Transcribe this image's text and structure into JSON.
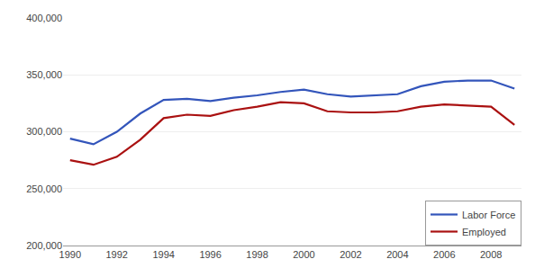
{
  "chart_data": {
    "type": "line",
    "x": [
      1990,
      1991,
      1992,
      1993,
      1994,
      1995,
      1996,
      1997,
      1998,
      1999,
      2000,
      2001,
      2002,
      2003,
      2004,
      2005,
      2006,
      2007,
      2008,
      2009
    ],
    "series": [
      {
        "name": "Labor Force",
        "color": "#3355bb",
        "values": [
          294000,
          289000,
          300000,
          316000,
          328000,
          329000,
          327000,
          330000,
          332000,
          335000,
          337000,
          333000,
          331000,
          332000,
          333000,
          340000,
          344000,
          345000,
          345000,
          338000
        ]
      },
      {
        "name": "Employed",
        "color": "#aa1111",
        "values": [
          275000,
          271000,
          278000,
          293000,
          312000,
          315000,
          314000,
          319000,
          322000,
          326000,
          325000,
          318000,
          317000,
          317000,
          318000,
          322000,
          324000,
          323000,
          322000,
          306000
        ]
      }
    ],
    "xlim": [
      1989.7,
      2009.3
    ],
    "xticks": [
      1990,
      1992,
      1994,
      1996,
      1998,
      2000,
      2002,
      2004,
      2006,
      2008
    ],
    "ylim": [
      200000,
      400000
    ],
    "yticks": [
      {
        "value": 200000,
        "label": "200,000"
      },
      {
        "value": 250000,
        "label": "250,000"
      },
      {
        "value": 300000,
        "label": "300,000"
      },
      {
        "value": 350000,
        "label": "350,000"
      },
      {
        "value": 400000,
        "label": "400,000"
      }
    ],
    "grid": true,
    "legend": "lower right"
  }
}
